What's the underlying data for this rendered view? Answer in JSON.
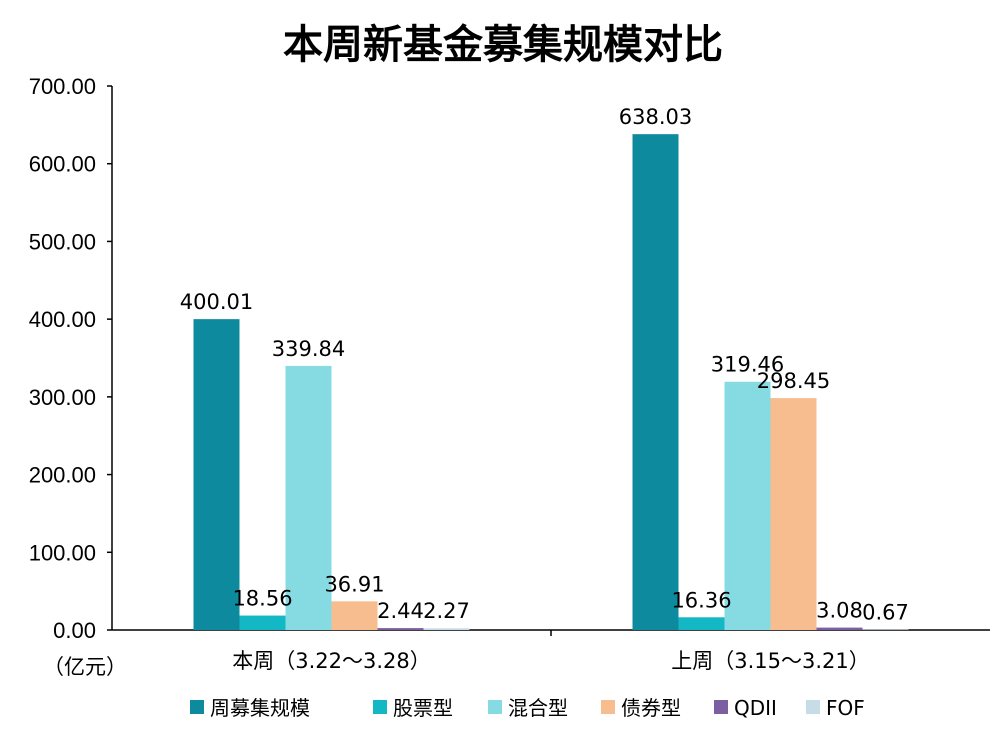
{
  "chart_data": {
    "type": "bar",
    "title": "本周新基金募集规模对比",
    "unit_label": "（亿元）",
    "categories": [
      "本周（3.22～3.28）",
      "上周（3.15～3.21）"
    ],
    "ylim": [
      0,
      700
    ],
    "yticks": [
      "0.00",
      "100.00",
      "200.00",
      "300.00",
      "400.00",
      "500.00",
      "600.00",
      "700.00"
    ],
    "grid": false,
    "legend_position": "bottom",
    "series": [
      {
        "name": "周募集规模",
        "color": "#0e8a9e",
        "values": [
          400.01,
          638.03
        ],
        "labels": [
          "400.01",
          "638.03"
        ]
      },
      {
        "name": "股票型",
        "color": "#14b8c4",
        "values": [
          18.56,
          16.36
        ],
        "labels": [
          "18.56",
          "16.36"
        ]
      },
      {
        "name": "混合型",
        "color": "#86dbe3",
        "values": [
          339.84,
          319.46
        ],
        "labels": [
          "339.84",
          "319.46"
        ]
      },
      {
        "name": "债券型",
        "color": "#f7bd8f",
        "values": [
          36.91,
          298.45
        ],
        "labels": [
          "36.91",
          "298.45"
        ]
      },
      {
        "name": "QDII",
        "color": "#7b5fa0",
        "values": [
          2.44,
          3.08
        ],
        "labels": [
          "2.44",
          "3.08"
        ]
      },
      {
        "name": "FOF",
        "color": "#c6dde8",
        "values": [
          2.27,
          0.67
        ],
        "labels": [
          "2.27",
          "0.67"
        ]
      }
    ]
  }
}
